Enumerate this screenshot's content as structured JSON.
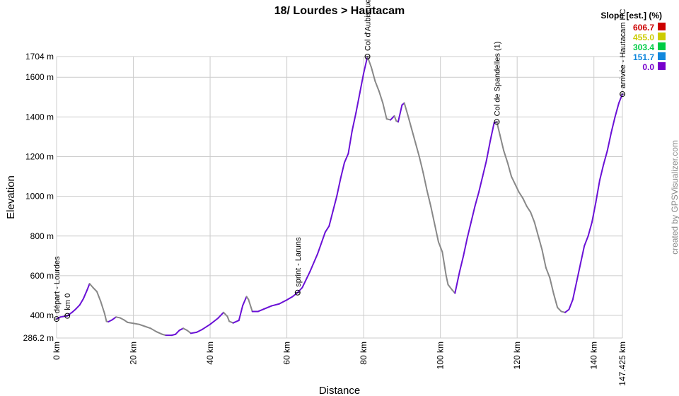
{
  "chart_data": {
    "type": "line",
    "title": "18/ Lourdes > Hautacam",
    "xlabel": "Distance",
    "ylabel": "Elevation",
    "xlim": [
      0,
      147.425
    ],
    "ylim": [
      286.2,
      1704
    ],
    "x_ticks": [
      {
        "value": 0,
        "label": "0 km"
      },
      {
        "value": 20,
        "label": "20 km"
      },
      {
        "value": 40,
        "label": "40 km"
      },
      {
        "value": 60,
        "label": "60 km"
      },
      {
        "value": 80,
        "label": "80 km"
      },
      {
        "value": 100,
        "label": "100 km"
      },
      {
        "value": 120,
        "label": "120 km"
      },
      {
        "value": 140,
        "label": "140 km"
      },
      {
        "value": 147.425,
        "label": "147.425 km"
      }
    ],
    "y_ticks": [
      {
        "value": 286.2,
        "label": "286.2 m"
      },
      {
        "value": 400,
        "label": "400 m"
      },
      {
        "value": 600,
        "label": "600 m"
      },
      {
        "value": 800,
        "label": "800 m"
      },
      {
        "value": 1000,
        "label": "1000 m"
      },
      {
        "value": 1200,
        "label": "1200 m"
      },
      {
        "value": 1400,
        "label": "1400 m"
      },
      {
        "value": 1600,
        "label": "1600 m"
      },
      {
        "value": 1704,
        "label": "1704 m"
      }
    ],
    "grid": true,
    "legend": {
      "title": "Slope [est.] (%)",
      "placement": "top-right",
      "entries": [
        {
          "label": "606.7",
          "color": "#cc0000"
        },
        {
          "label": "455.0",
          "color": "#cccc00"
        },
        {
          "label": "303.4",
          "color": "#00cc44"
        },
        {
          "label": "151.7",
          "color": "#1188dd"
        },
        {
          "label": "0.0",
          "color": "#7700cc"
        }
      ]
    },
    "colors": {
      "climb": "#6a11d6",
      "descent": "#888888"
    },
    "series": [
      {
        "points": [
          [
            0,
            382
          ],
          [
            1,
            392
          ],
          [
            2.8,
            398
          ],
          [
            4,
            415
          ],
          [
            5,
            432
          ],
          [
            6,
            452
          ],
          [
            7,
            485
          ],
          [
            8,
            530
          ],
          [
            8.6,
            560
          ],
          [
            9.5,
            540
          ],
          [
            10.5,
            520
          ],
          [
            11.5,
            470
          ],
          [
            12.5,
            410
          ],
          [
            13,
            370
          ],
          [
            13.5,
            368
          ],
          [
            14.5,
            378
          ],
          [
            15.5,
            392
          ],
          [
            16.5,
            388
          ],
          [
            17.5,
            378
          ],
          [
            18.5,
            365
          ],
          [
            20,
            360
          ],
          [
            21.5,
            355
          ],
          [
            23,
            345
          ],
          [
            24.5,
            335
          ],
          [
            26,
            318
          ],
          [
            27.5,
            305
          ],
          [
            28.5,
            300
          ],
          [
            30,
            300
          ],
          [
            31,
            305
          ],
          [
            32,
            325
          ],
          [
            33,
            335
          ],
          [
            34,
            325
          ],
          [
            35,
            310
          ],
          [
            36.5,
            315
          ],
          [
            38,
            330
          ],
          [
            40,
            355
          ],
          [
            42,
            385
          ],
          [
            43.5,
            415
          ],
          [
            44.5,
            395
          ],
          [
            45,
            370
          ],
          [
            46,
            362
          ],
          [
            47.5,
            375
          ],
          [
            48.5,
            450
          ],
          [
            49.5,
            495
          ],
          [
            50,
            480
          ],
          [
            51,
            420
          ],
          [
            52.5,
            420
          ],
          [
            54,
            432
          ],
          [
            56,
            448
          ],
          [
            58,
            458
          ],
          [
            60,
            478
          ],
          [
            61.5,
            495
          ],
          [
            62.8,
            515
          ],
          [
            64,
            540
          ],
          [
            66,
            620
          ],
          [
            68,
            710
          ],
          [
            70,
            820
          ],
          [
            71,
            850
          ],
          [
            72,
            925
          ],
          [
            73,
            1000
          ],
          [
            74,
            1090
          ],
          [
            75,
            1170
          ],
          [
            76,
            1215
          ],
          [
            77,
            1330
          ],
          [
            78,
            1420
          ],
          [
            79,
            1520
          ],
          [
            80,
            1620
          ],
          [
            81,
            1704
          ],
          [
            82,
            1650
          ],
          [
            83,
            1580
          ],
          [
            84,
            1530
          ],
          [
            85,
            1470
          ],
          [
            86,
            1390
          ],
          [
            87,
            1385
          ],
          [
            88,
            1405
          ],
          [
            88.5,
            1380
          ],
          [
            89,
            1375
          ],
          [
            90,
            1460
          ],
          [
            90.6,
            1470
          ],
          [
            91.5,
            1410
          ],
          [
            92.5,
            1340
          ],
          [
            93.5,
            1270
          ],
          [
            94.5,
            1200
          ],
          [
            95.5,
            1120
          ],
          [
            96.5,
            1030
          ],
          [
            97.5,
            950
          ],
          [
            98.5,
            860
          ],
          [
            99.5,
            770
          ],
          [
            100.5,
            720
          ],
          [
            101,
            660
          ],
          [
            101.5,
            600
          ],
          [
            102,
            555
          ],
          [
            103,
            530
          ],
          [
            103.8,
            512
          ],
          [
            105,
            620
          ],
          [
            106,
            700
          ],
          [
            107,
            790
          ],
          [
            108,
            870
          ],
          [
            109,
            950
          ],
          [
            110,
            1020
          ],
          [
            111,
            1100
          ],
          [
            112,
            1180
          ],
          [
            113,
            1280
          ],
          [
            114,
            1370
          ],
          [
            114.7,
            1375
          ],
          [
            115.5,
            1310
          ],
          [
            116.5,
            1230
          ],
          [
            117.5,
            1170
          ],
          [
            118.5,
            1100
          ],
          [
            119.5,
            1060
          ],
          [
            120.5,
            1020
          ],
          [
            121.5,
            990
          ],
          [
            122.5,
            950
          ],
          [
            123.5,
            920
          ],
          [
            124.5,
            870
          ],
          [
            125.5,
            800
          ],
          [
            126.5,
            730
          ],
          [
            127.5,
            640
          ],
          [
            128.5,
            590
          ],
          [
            129.5,
            510
          ],
          [
            130.5,
            440
          ],
          [
            131.5,
            420
          ],
          [
            132.5,
            415
          ],
          [
            133.5,
            430
          ],
          [
            134.5,
            480
          ],
          [
            135.5,
            570
          ],
          [
            136.5,
            660
          ],
          [
            137.5,
            750
          ],
          [
            138.5,
            800
          ],
          [
            139.5,
            870
          ],
          [
            140.5,
            970
          ],
          [
            141.5,
            1080
          ],
          [
            142.5,
            1160
          ],
          [
            143.5,
            1230
          ],
          [
            144.5,
            1320
          ],
          [
            145.5,
            1400
          ],
          [
            146.5,
            1470
          ],
          [
            147.425,
            1515
          ]
        ]
      }
    ],
    "waypoints": [
      {
        "x": 0,
        "y": 382,
        "label": "départ - Lourdes"
      },
      {
        "x": 2.8,
        "y": 398,
        "label": "km 0"
      },
      {
        "x": 62.8,
        "y": 515,
        "label": "sprint - Laruns"
      },
      {
        "x": 81,
        "y": 1704,
        "label": "Col d'Aubisque"
      },
      {
        "x": 114.7,
        "y": 1375,
        "label": "Col de Spandelles (1)"
      },
      {
        "x": 147.425,
        "y": 1515,
        "label": "arrivée - Hautacam HC"
      }
    ],
    "credit": "created by GPSVisualizer.com"
  }
}
